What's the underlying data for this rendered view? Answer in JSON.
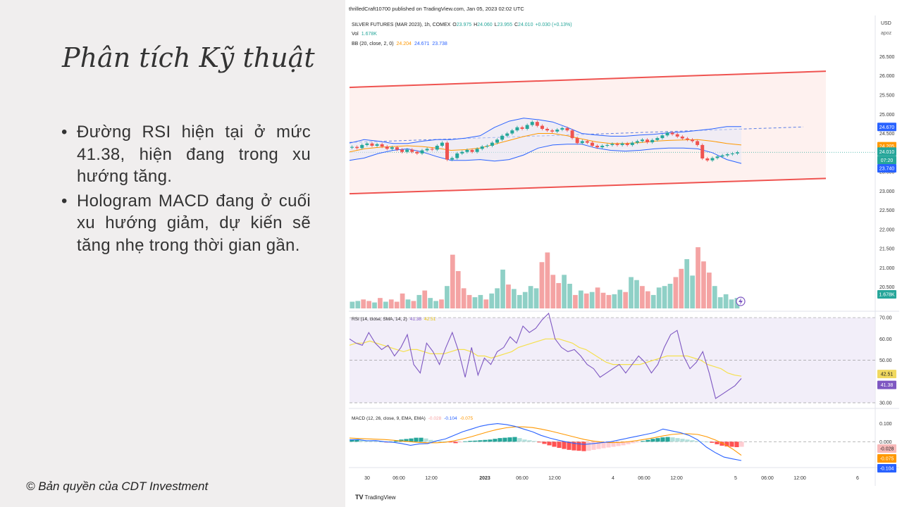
{
  "slide": {
    "title": "Phân tích Kỹ thuật",
    "bullets": [
      "Đường RSI hiện tại ở mức 41.38, hiện đang trong xu hướng tăng.",
      "Hologram MACD đang ở cuối xu hướng giảm, dự kiến sẽ tăng nhẹ trong thời gian gần."
    ],
    "copyright": "© Bản quyền của CDT Investment"
  },
  "chart_data": {
    "type": "candlestick",
    "publisher_line": "thrilledCraft10700 published on TradingView.com, Jan 05, 2023 02:02 UTC",
    "symbol_line": "SILVER FUTURES (MAR 2023), 1h, COMEX",
    "ohlc": {
      "o_label": "O",
      "o": "23.975",
      "h_label": "H",
      "h": "24.060",
      "l_label": "L",
      "l": "23.955",
      "c_label": "C",
      "c": "24.010",
      "change": "+0.030 (+0.13%)"
    },
    "vol_label": "Vol",
    "vol_value": "1.678K",
    "bb_label": "BB (20, close, 2, 0)",
    "bb_values": [
      "24.204",
      "24.671",
      "23.738"
    ],
    "currency": "USD",
    "currency_sub": "apoz",
    "price_axis_ticks": [
      "26.500",
      "26.000",
      "25.500",
      "25.000",
      "24.500",
      "23.500",
      "23.000",
      "22.500",
      "22.000",
      "21.500",
      "21.000",
      "20.500"
    ],
    "price_ylim": [
      20.0,
      26.6
    ],
    "price_badges": [
      {
        "text": "24.670",
        "color": "#2962ff"
      },
      {
        "text": "24.205",
        "color": "#ff9800"
      },
      {
        "text": "24.010",
        "color": "#26a69a"
      },
      {
        "text": "07:20",
        "color": "#26a69a"
      },
      {
        "text": "23.740",
        "color": "#2962ff"
      },
      {
        "text": "1.678K",
        "color": "#26a69a"
      }
    ],
    "closes": [
      24.15,
      24.12,
      24.2,
      24.24,
      24.18,
      24.22,
      24.16,
      24.1,
      24.14,
      24.08,
      24.02,
      24.08,
      24.02,
      23.98,
      24.06,
      24.1,
      24.08,
      24.18,
      24.26,
      23.82,
      23.86,
      23.98,
      24.02,
      24.07,
      24.02,
      24.1,
      24.16,
      24.18,
      24.26,
      24.34,
      24.44,
      24.5,
      24.58,
      24.66,
      24.62,
      24.72,
      24.8,
      24.7,
      24.62,
      24.58,
      24.55,
      24.6,
      24.64,
      24.58,
      24.38,
      24.25,
      24.3,
      24.26,
      24.18,
      24.14,
      24.18,
      24.2,
      24.23,
      24.2,
      24.24,
      24.2,
      24.26,
      24.3,
      24.34,
      24.27,
      24.33,
      24.38,
      24.45,
      24.52,
      24.48,
      24.42,
      24.37,
      24.34,
      24.3,
      24.2,
      23.85,
      23.8,
      23.86,
      23.9,
      23.93,
      23.96,
      23.98,
      24.01
    ],
    "bb_mid": [
      24.02,
      24.1,
      24.14,
      24.16,
      24.18,
      24.16,
      24.12,
      24.06,
      24.08,
      24.12,
      24.22,
      24.32,
      24.42,
      24.5,
      24.5,
      24.44,
      24.36,
      24.28,
      24.24,
      24.24,
      24.26,
      24.3,
      24.32,
      24.33,
      24.34,
      24.3,
      24.24,
      24.2
    ],
    "bb_upper": [
      24.25,
      24.34,
      24.3,
      24.24,
      24.24,
      24.3,
      24.34,
      24.34,
      24.38,
      24.44,
      24.66,
      24.82,
      24.9,
      24.86,
      24.8,
      24.66,
      24.5,
      24.46,
      24.43,
      24.43,
      24.46,
      24.48,
      24.52,
      24.54,
      24.58,
      24.62,
      24.68,
      24.68
    ],
    "bb_lower": [
      23.8,
      23.86,
      23.98,
      24.06,
      24.1,
      24.02,
      23.9,
      23.8,
      23.8,
      23.82,
      23.78,
      23.82,
      23.94,
      24.12,
      24.2,
      24.22,
      24.22,
      24.12,
      24.06,
      24.04,
      24.06,
      24.1,
      24.12,
      24.12,
      24.1,
      24.0,
      23.82,
      23.72
    ],
    "channel": {
      "upper": [
        25.7,
        26.12
      ],
      "lower": [
        22.93,
        23.33
      ]
    },
    "dashed_level": 24.67,
    "last_price_level": 24.01,
    "volume": [
      9,
      10,
      12,
      10,
      8,
      14,
      9,
      12,
      9,
      20,
      12,
      10,
      18,
      24,
      14,
      10,
      12,
      30,
      72,
      50,
      27,
      18,
      15,
      18,
      12,
      20,
      27,
      52,
      32,
      26,
      18,
      22,
      30,
      27,
      62,
      75,
      45,
      34,
      45,
      33,
      18,
      24,
      20,
      22,
      28,
      21,
      18,
      19,
      25,
      22,
      42,
      38,
      30,
      23,
      18,
      28,
      30,
      33,
      42,
      53,
      66,
      44,
      82,
      63,
      48,
      30,
      15,
      19,
      12,
      14
    ],
    "volume_up": [
      1,
      1,
      0,
      0,
      1,
      0,
      1,
      0,
      0,
      0,
      1,
      0,
      1,
      0,
      1,
      1,
      0,
      1,
      0,
      0,
      0,
      0,
      1,
      1,
      0,
      1,
      1,
      1,
      0,
      1,
      1,
      1,
      1,
      1,
      0,
      0,
      0,
      0,
      1,
      1,
      0,
      1,
      0,
      1,
      0,
      0,
      0,
      1,
      1,
      0,
      1,
      1,
      0,
      0,
      1,
      1,
      1,
      1,
      0,
      0,
      1,
      1,
      0,
      0,
      0,
      1,
      1,
      1,
      1,
      1
    ],
    "volume_max": 100,
    "rsi_label": "RSI (14, close, SMA, 14, 2)",
    "rsi_values": [
      "41.38",
      "42.51"
    ],
    "rsi_ticks": [
      "70.00",
      "60.00",
      "50.00",
      "30.00"
    ],
    "rsi_ylim": [
      29,
      72
    ],
    "rsi_badges": [
      {
        "text": "42.51",
        "color": "#f1d95f"
      },
      {
        "text": "41.38",
        "color": "#7e57c2"
      }
    ],
    "rsi": [
      60,
      58,
      57,
      63,
      58,
      55,
      57,
      52,
      56,
      62,
      48,
      44,
      58,
      54,
      48,
      56,
      63,
      54,
      42,
      56,
      43,
      51,
      48,
      54,
      56,
      61,
      58,
      66,
      63,
      65,
      69,
      72,
      60,
      56,
      54,
      55,
      52,
      48,
      46,
      42,
      44,
      46,
      48,
      44,
      48,
      52,
      49,
      44,
      48,
      56,
      62,
      64,
      52,
      46,
      49,
      54,
      44,
      32,
      34,
      36,
      38,
      41.4
    ],
    "rsi_sma": [
      57,
      58,
      58,
      59,
      58,
      57,
      56,
      55,
      54,
      55,
      55,
      54,
      53,
      53,
      53,
      54,
      55,
      55,
      54,
      52,
      52,
      51,
      52,
      53,
      54,
      56,
      57,
      58,
      59,
      60,
      60,
      60,
      59,
      58,
      56,
      55,
      53,
      51,
      49,
      48,
      48,
      48,
      48,
      48,
      49,
      50,
      51,
      52,
      52,
      52,
      52,
      51,
      50,
      48,
      47,
      46,
      44,
      43,
      42.5
    ],
    "macd_label": "MACD (12, 26, close, 9, EMA, EMA)",
    "macd_values": [
      "-0.028",
      "-0.104",
      "-0.075"
    ],
    "macd_ticks": [
      "0.100",
      "0.000"
    ],
    "macd_ylim": [
      -0.135,
      0.145
    ],
    "macd_badges": [
      {
        "text": "-0.028",
        "color": "#f7b9b9"
      },
      {
        "text": "-0.075",
        "color": "#ff9800"
      },
      {
        "text": "-0.104",
        "color": "#2962ff"
      }
    ],
    "macd": [
      0.01,
      0.012,
      0.005,
      0.006,
      0.0,
      -0.003,
      -0.01,
      -0.02,
      -0.012,
      -0.01,
      0.005,
      0.015,
      0.035,
      0.055,
      0.07,
      0.085,
      0.095,
      0.1,
      0.095,
      0.085,
      0.07,
      0.055,
      0.035,
      0.02,
      0.008,
      -0.002,
      -0.01,
      -0.015,
      -0.01,
      -0.005,
      0.0,
      0.01,
      0.02,
      0.03,
      0.04,
      0.05,
      0.07,
      0.06,
      0.05,
      0.035,
      0.01,
      -0.03,
      -0.06,
      -0.085,
      -0.095,
      -0.104
    ],
    "macd_signal": [
      0.02,
      0.018,
      0.016,
      0.014,
      0.012,
      0.008,
      0.004,
      0.0,
      -0.004,
      -0.006,
      -0.006,
      -0.003,
      0.005,
      0.015,
      0.028,
      0.042,
      0.056,
      0.068,
      0.077,
      0.082,
      0.082,
      0.078,
      0.07,
      0.06,
      0.048,
      0.036,
      0.024,
      0.012,
      0.004,
      -0.002,
      -0.005,
      -0.004,
      0.0,
      0.006,
      0.014,
      0.022,
      0.032,
      0.04,
      0.044,
      0.044,
      0.04,
      0.028,
      0.01,
      -0.012,
      -0.04,
      -0.075
    ],
    "macd_hist": [
      0.012,
      0.012,
      0.01,
      0.008,
      0.006,
      0.004,
      0.0,
      -0.004,
      0.0,
      0.006,
      0.012,
      0.015,
      0.018,
      0.022,
      0.022,
      0.018,
      0.01,
      0.006,
      0.004,
      0.002,
      -0.004,
      -0.008,
      -0.004,
      0.002,
      0.005,
      0.006,
      0.008,
      0.01,
      0.012,
      0.016,
      0.02,
      0.022,
      0.024,
      0.026,
      0.02,
      0.012,
      0.008,
      0.004,
      -0.004,
      -0.012,
      -0.02,
      -0.028,
      -0.034,
      -0.04,
      -0.045,
      -0.048,
      -0.05,
      -0.052,
      -0.05,
      -0.045,
      -0.04,
      -0.036,
      -0.032,
      -0.028,
      -0.024,
      -0.02,
      -0.014,
      -0.008,
      -0.002,
      0.004,
      0.01,
      0.016,
      0.02,
      0.024,
      0.026,
      0.024,
      0.02,
      0.016,
      0.012,
      0.008,
      0.004,
      0.002,
      0.0,
      -0.006,
      -0.014,
      -0.022,
      -0.026,
      -0.028,
      -0.03,
      -0.028
    ],
    "x_ticks": [
      "30",
      "06:00",
      "12:00",
      "2023",
      "06:00",
      "12:00",
      "4",
      "06:00",
      "12:00",
      "5",
      "06:00",
      "12:00",
      "6"
    ],
    "brand": "TradingView"
  }
}
